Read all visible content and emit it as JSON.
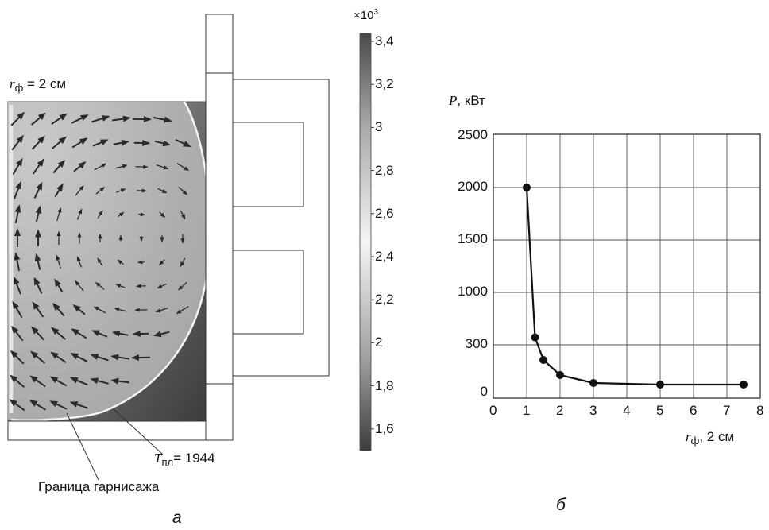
{
  "panel_a": {
    "label": "а",
    "radius_label": {
      "var": "r",
      "sub": "ф",
      "rest": " = 2 см"
    },
    "temperature_label": {
      "var": "T",
      "sub": "пл",
      "rest": "= 1944"
    },
    "crust_label": "Граница гарнисажа",
    "colorbar": {
      "multiplier": "×10",
      "multiplier_exp": "3",
      "ticks": [
        "3,4",
        "3,2",
        "3",
        "2,8",
        "2,6",
        "2,4",
        "2,2",
        "2",
        "1,8",
        "1,6"
      ],
      "colors": {
        "top": "#4a4a4a",
        "middle": "#f2f2f2",
        "bottom": "#3c3c3c"
      }
    }
  },
  "panel_b": {
    "label": "б",
    "chart_data": {
      "type": "line",
      "x": [
        1.0,
        1.25,
        1.5,
        2.0,
        3.0,
        5.0,
        7.5
      ],
      "y": [
        2000,
        400,
        205,
        110,
        60,
        50,
        50
      ],
      "ylabel": {
        "var": "P",
        "rest": ", кВт"
      },
      "xlabel": {
        "var": "r",
        "sub": "ф",
        "rest": ", 2 см"
      },
      "xticks": [
        "0",
        "1",
        "2",
        "3",
        "4",
        "5",
        "6",
        "7",
        "8"
      ],
      "yticks": [
        "0",
        "300",
        "1000",
        "1500",
        "2000",
        "2500"
      ],
      "xlim": [
        0,
        8
      ],
      "grid": true,
      "line_color": "#111111"
    }
  }
}
